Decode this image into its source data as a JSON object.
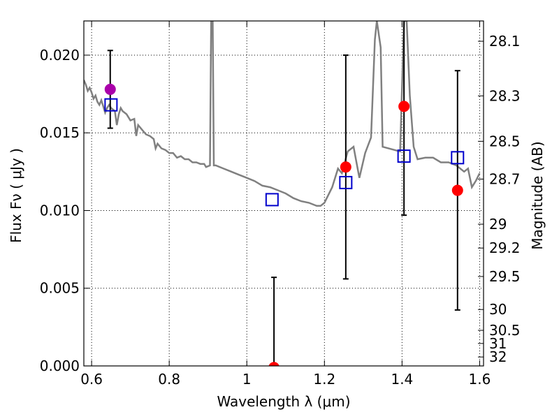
{
  "chart_data": {
    "type": "scatter",
    "xlabel": "Wavelength  λ (μm)",
    "ylabel": "Flux  Fν  ( μJy )",
    "ylabel_right": "Magnitude (AB)",
    "xlim": [
      0.58,
      1.61
    ],
    "ylim": [
      0.0,
      0.0222
    ],
    "x_ticks": [
      0.6,
      0.8,
      1.0,
      1.2,
      1.4,
      1.6
    ],
    "x_tick_labels": [
      "0.6",
      "0.8",
      "1",
      "1.2",
      "1.4",
      "1.6"
    ],
    "y_ticks": [
      0.0,
      0.005,
      0.01,
      0.015,
      0.02
    ],
    "y_tick_labels": [
      "0.000",
      "0.005",
      "0.010",
      "0.015",
      "0.020"
    ],
    "mag_ticks": [
      28.1,
      28.3,
      28.5,
      28.7,
      29,
      29.2,
      29.5,
      30,
      30.5,
      31,
      32
    ],
    "mag_tick_labels": [
      "28.1",
      "28.3",
      "28.5",
      "28.7",
      "29",
      "29.2",
      "29.5",
      "30",
      "30.5",
      "31",
      "32"
    ],
    "grid": true,
    "colors": {
      "model": "#808080",
      "observed_primary": "#ff0000",
      "observed_first": "#aa00aa",
      "model_bands": "#0000cc",
      "error_bar": "#000000"
    },
    "series": [
      {
        "kind": "model_spectrum",
        "points": [
          [
            0.58,
            0.0184
          ],
          [
            0.585,
            0.0181
          ],
          [
            0.59,
            0.0177
          ],
          [
            0.595,
            0.0179
          ],
          [
            0.6,
            0.0176
          ],
          [
            0.605,
            0.0172
          ],
          [
            0.61,
            0.0174
          ],
          [
            0.615,
            0.017
          ],
          [
            0.62,
            0.0168
          ],
          [
            0.625,
            0.0171
          ],
          [
            0.63,
            0.0167
          ],
          [
            0.635,
            0.0163
          ],
          [
            0.64,
            0.0166
          ],
          [
            0.645,
            0.0168
          ],
          [
            0.65,
            0.0166
          ],
          [
            0.655,
            0.0165
          ],
          [
            0.66,
            0.0164
          ],
          [
            0.665,
            0.0155
          ],
          [
            0.67,
            0.0162
          ],
          [
            0.675,
            0.0166
          ],
          [
            0.68,
            0.0164
          ],
          [
            0.69,
            0.0162
          ],
          [
            0.7,
            0.0158
          ],
          [
            0.71,
            0.0159
          ],
          [
            0.715,
            0.0148
          ],
          [
            0.72,
            0.0155
          ],
          [
            0.73,
            0.0152
          ],
          [
            0.74,
            0.0149
          ],
          [
            0.75,
            0.0148
          ],
          [
            0.76,
            0.0146
          ],
          [
            0.765,
            0.014
          ],
          [
            0.77,
            0.0143
          ],
          [
            0.78,
            0.014
          ],
          [
            0.79,
            0.0139
          ],
          [
            0.8,
            0.0137
          ],
          [
            0.81,
            0.0137
          ],
          [
            0.82,
            0.0134
          ],
          [
            0.83,
            0.0135
          ],
          [
            0.84,
            0.0133
          ],
          [
            0.85,
            0.0133
          ],
          [
            0.86,
            0.0131
          ],
          [
            0.87,
            0.0131
          ],
          [
            0.88,
            0.013
          ],
          [
            0.89,
            0.013
          ],
          [
            0.895,
            0.0128
          ],
          [
            0.905,
            0.0129
          ],
          [
            0.908,
            0.0222
          ],
          [
            0.912,
            0.0222
          ],
          [
            0.915,
            0.0129
          ],
          [
            0.92,
            0.0129
          ],
          [
            0.94,
            0.0127
          ],
          [
            0.96,
            0.0125
          ],
          [
            0.98,
            0.0123
          ],
          [
            1.0,
            0.0121
          ],
          [
            1.02,
            0.0119
          ],
          [
            1.04,
            0.0116
          ],
          [
            1.06,
            0.0115
          ],
          [
            1.08,
            0.0113
          ],
          [
            1.1,
            0.0111
          ],
          [
            1.12,
            0.0108
          ],
          [
            1.14,
            0.0106
          ],
          [
            1.16,
            0.0105
          ],
          [
            1.18,
            0.0103
          ],
          [
            1.19,
            0.0103
          ],
          [
            1.2,
            0.0105
          ],
          [
            1.22,
            0.0115
          ],
          [
            1.235,
            0.0127
          ],
          [
            1.245,
            0.0124
          ],
          [
            1.26,
            0.0138
          ],
          [
            1.275,
            0.0141
          ],
          [
            1.29,
            0.0121
          ],
          [
            1.305,
            0.0137
          ],
          [
            1.32,
            0.0147
          ],
          [
            1.33,
            0.021
          ],
          [
            1.335,
            0.0222
          ],
          [
            1.345,
            0.0205
          ],
          [
            1.35,
            0.0141
          ],
          [
            1.38,
            0.0139
          ],
          [
            1.395,
            0.0138
          ],
          [
            1.405,
            0.0222
          ],
          [
            1.412,
            0.0222
          ],
          [
            1.42,
            0.0174
          ],
          [
            1.43,
            0.0141
          ],
          [
            1.44,
            0.0133
          ],
          [
            1.46,
            0.0134
          ],
          [
            1.48,
            0.0134
          ],
          [
            1.5,
            0.0131
          ],
          [
            1.52,
            0.0131
          ],
          [
            1.54,
            0.0129
          ],
          [
            1.56,
            0.0125
          ],
          [
            1.57,
            0.0127
          ],
          [
            1.58,
            0.0115
          ],
          [
            1.59,
            0.0119
          ],
          [
            1.6,
            0.0124
          ]
        ]
      },
      {
        "kind": "observed_flux",
        "marker": "circle",
        "points": [
          {
            "x": 0.648,
            "y": 0.0178,
            "err": 0.0025
          },
          {
            "x": 1.07,
            "y": -0.0001,
            "err": 0.0058
          },
          {
            "x": 1.255,
            "y": 0.0128,
            "err": 0.0072
          },
          {
            "x": 1.405,
            "y": 0.0167,
            "err": 0.007
          },
          {
            "x": 1.543,
            "y": 0.0113,
            "err": 0.0077
          }
        ]
      },
      {
        "kind": "model_band_flux",
        "marker": "open-square",
        "points": [
          {
            "x": 0.65,
            "y": 0.0168
          },
          {
            "x": 1.065,
            "y": 0.0107
          },
          {
            "x": 1.255,
            "y": 0.0118
          },
          {
            "x": 1.405,
            "y": 0.0135
          },
          {
            "x": 1.543,
            "y": 0.0134
          }
        ]
      }
    ]
  }
}
